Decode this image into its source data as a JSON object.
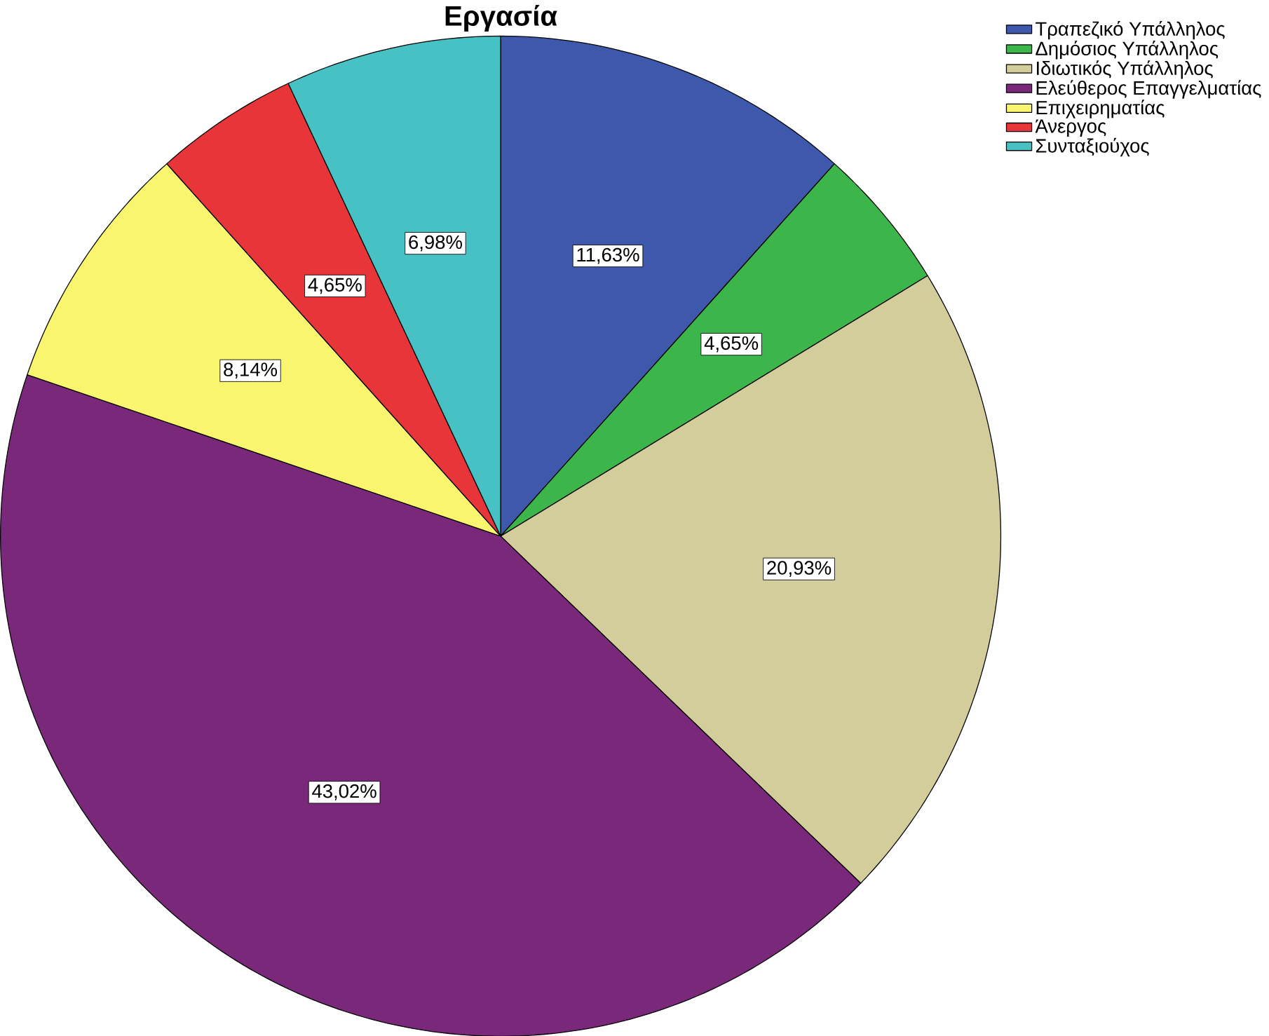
{
  "chart_data": {
    "type": "pie",
    "title": "Εργασία",
    "categories": [
      "Τραπεζικό Υπάλληλος",
      "Δημόσιος Υπάλληλος",
      "Ιδιωτικός Υπάλληλος",
      "Ελεύθερος Επαγγελματίας",
      "Επιχειρηματίας",
      "Άνεργος",
      "Συνταξιούχος"
    ],
    "values": [
      11.63,
      4.65,
      20.93,
      43.02,
      8.14,
      4.65,
      6.98
    ],
    "value_labels": [
      "11,63%",
      "4,65%",
      "20,93%",
      "43,02%",
      "8,14%",
      "4,65%",
      "6,98%"
    ],
    "colors": [
      "#3e58ac",
      "#3cb54a",
      "#d2cd9a",
      "#7a287a",
      "#f9f56e",
      "#e8353a",
      "#48c1c5"
    ],
    "legend": "top right"
  }
}
